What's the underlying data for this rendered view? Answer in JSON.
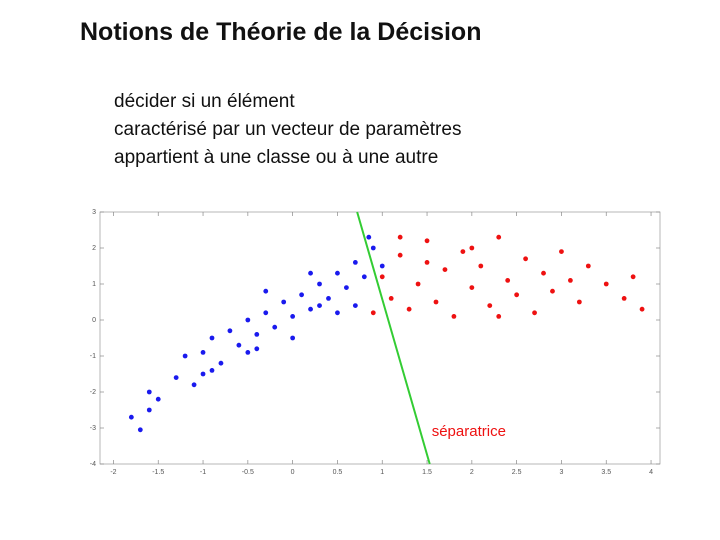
{
  "title": "Notions de Théorie de la Décision",
  "text": [
    "décider si un élément",
    "caractérisé par un vecteur de paramètres",
    "appartient à une classe ou à une autre"
  ],
  "chart_data": {
    "type": "scatter",
    "xlim": [
      -2.15,
      4.1
    ],
    "ylim": [
      -4,
      3
    ],
    "xticks": [
      -2,
      -1.5,
      -1,
      -0.5,
      0,
      0.5,
      1,
      1.5,
      2,
      2.5,
      3,
      3.5,
      4
    ],
    "yticks": [
      -4,
      -3,
      -2,
      -1,
      0,
      1,
      2,
      3
    ],
    "series": [
      {
        "color": "#1a1aee",
        "x": [
          -1.8,
          -1.6,
          -1.5,
          -1.3,
          -1.2,
          -1.1,
          -1,
          -0.9,
          -0.8,
          -0.7,
          -0.6,
          -0.5,
          -0.4,
          -0.3,
          -0.2,
          -0.1,
          0,
          0.1,
          0.2,
          0.3,
          0.4,
          0.5,
          0.6,
          0.7,
          0.8,
          0.9,
          1,
          0.5,
          0,
          -0.5,
          -1,
          0.2,
          -0.3,
          0.7,
          -1.6,
          -1.7,
          -0.9,
          -0.4,
          0.3,
          0.85
        ],
        "y": [
          -2.7,
          -2,
          -2.2,
          -1.6,
          -1,
          -1.8,
          -0.9,
          -0.5,
          -1.2,
          -0.3,
          -0.7,
          0,
          -0.4,
          0.2,
          -0.2,
          0.5,
          0.1,
          0.7,
          0.3,
          1,
          0.6,
          1.3,
          0.9,
          1.6,
          1.2,
          2,
          1.5,
          0.2,
          -0.5,
          -0.9,
          -1.5,
          1.3,
          0.8,
          0.4,
          -2.5,
          -3.05,
          -1.4,
          -0.8,
          0.4,
          2.3
        ]
      },
      {
        "color": "#ee1111",
        "x": [
          1,
          1.1,
          1.2,
          1.3,
          1.4,
          1.5,
          1.6,
          1.7,
          1.8,
          1.9,
          2,
          2.1,
          2.2,
          2.3,
          2.4,
          2.5,
          2.6,
          2.7,
          2.8,
          2.9,
          3,
          3.1,
          3.2,
          3.3,
          3.5,
          3.7,
          3.8,
          3.9,
          1.2,
          1.5,
          2,
          2.3,
          0.9
        ],
        "y": [
          1.2,
          0.6,
          1.8,
          0.3,
          1,
          2.2,
          0.5,
          1.4,
          0.1,
          1.9,
          0.9,
          1.5,
          0.4,
          2.3,
          1.1,
          0.7,
          1.7,
          0.2,
          1.3,
          0.8,
          1.9,
          1.1,
          0.5,
          1.5,
          1,
          0.6,
          1.2,
          0.3,
          2.3,
          1.6,
          2,
          0.1,
          0.2
        ]
      }
    ],
    "separator": {
      "color": "#33cc33",
      "x": [
        0.72,
        1.53
      ],
      "y": [
        3,
        -4
      ]
    },
    "annotation": "séparatrice"
  }
}
